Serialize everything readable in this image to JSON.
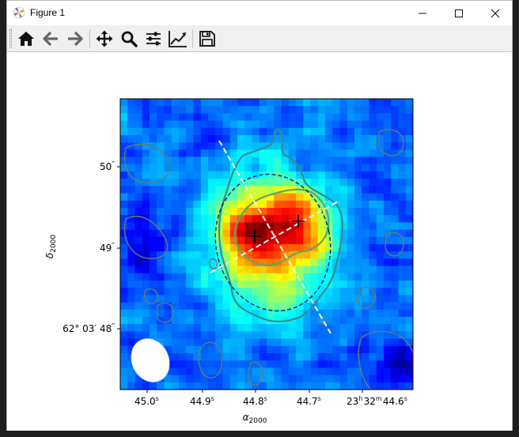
{
  "window": {
    "title": "Figure 1"
  },
  "toolbar": {
    "buttons": [
      {
        "name": "home-button",
        "icon": "home-icon",
        "tooltip": "Reset original view"
      },
      {
        "name": "back-button",
        "icon": "arrow-left-icon",
        "tooltip": "Back to previous view"
      },
      {
        "name": "forward-button",
        "icon": "arrow-right-icon",
        "tooltip": "Forward to next view"
      },
      {
        "name": "pan-button",
        "icon": "move-icon",
        "tooltip": "Pan axes"
      },
      {
        "name": "zoom-button",
        "icon": "magnifier-icon",
        "tooltip": "Zoom to rectangle"
      },
      {
        "name": "subplots-button",
        "icon": "sliders-icon",
        "tooltip": "Configure subplots"
      },
      {
        "name": "edit-axis-button",
        "icon": "chart-line-icon",
        "tooltip": "Edit axis"
      },
      {
        "name": "save-button",
        "icon": "floppy-disk-icon",
        "tooltip": "Save the figure"
      }
    ]
  },
  "colors": {
    "background": "#ffffff",
    "toolbar": "#f0f0f0",
    "contour_outer": "#3a8c8c",
    "contour_inner": "#5aa66a",
    "contour_noise": "#6b7a6b",
    "ellipse": "#0a1a7a",
    "dash_line": "#f5f5f5",
    "beam": "#ffffff"
  },
  "chart_data": {
    "type": "heatmap",
    "title": "",
    "colormap": "jet",
    "xlabel": "α2000",
    "xlabel_symbol": "α",
    "xlabel_sub": "2000",
    "ylabel": "δ2000",
    "ylabel_symbol": "δ",
    "ylabel_sub": "2000",
    "x_ticks": [
      {
        "label": "45.0",
        "sup": "s"
      },
      {
        "label": "44.9",
        "sup": "s"
      },
      {
        "label": "44.8",
        "sup": "s"
      },
      {
        "label": "44.7",
        "sup": "s"
      },
      {
        "label": "23",
        "sup": "h",
        "label2": "32",
        "sup2": "m",
        "label3": "44.6",
        "sup3": "s"
      }
    ],
    "y_ticks": [
      {
        "label": "50",
        "sup": "″"
      },
      {
        "label": "49",
        "sup": "″"
      },
      {
        "label": "62° 03′ 48",
        "sup": "″"
      }
    ],
    "peaks": [
      {
        "name": "peak-1",
        "marker": "+"
      },
      {
        "name": "peak-2",
        "marker": "+"
      }
    ],
    "contour_levels": [
      "outer",
      "inner",
      "noise"
    ],
    "beam": "ellipse",
    "fit_ellipse": "dashed"
  }
}
